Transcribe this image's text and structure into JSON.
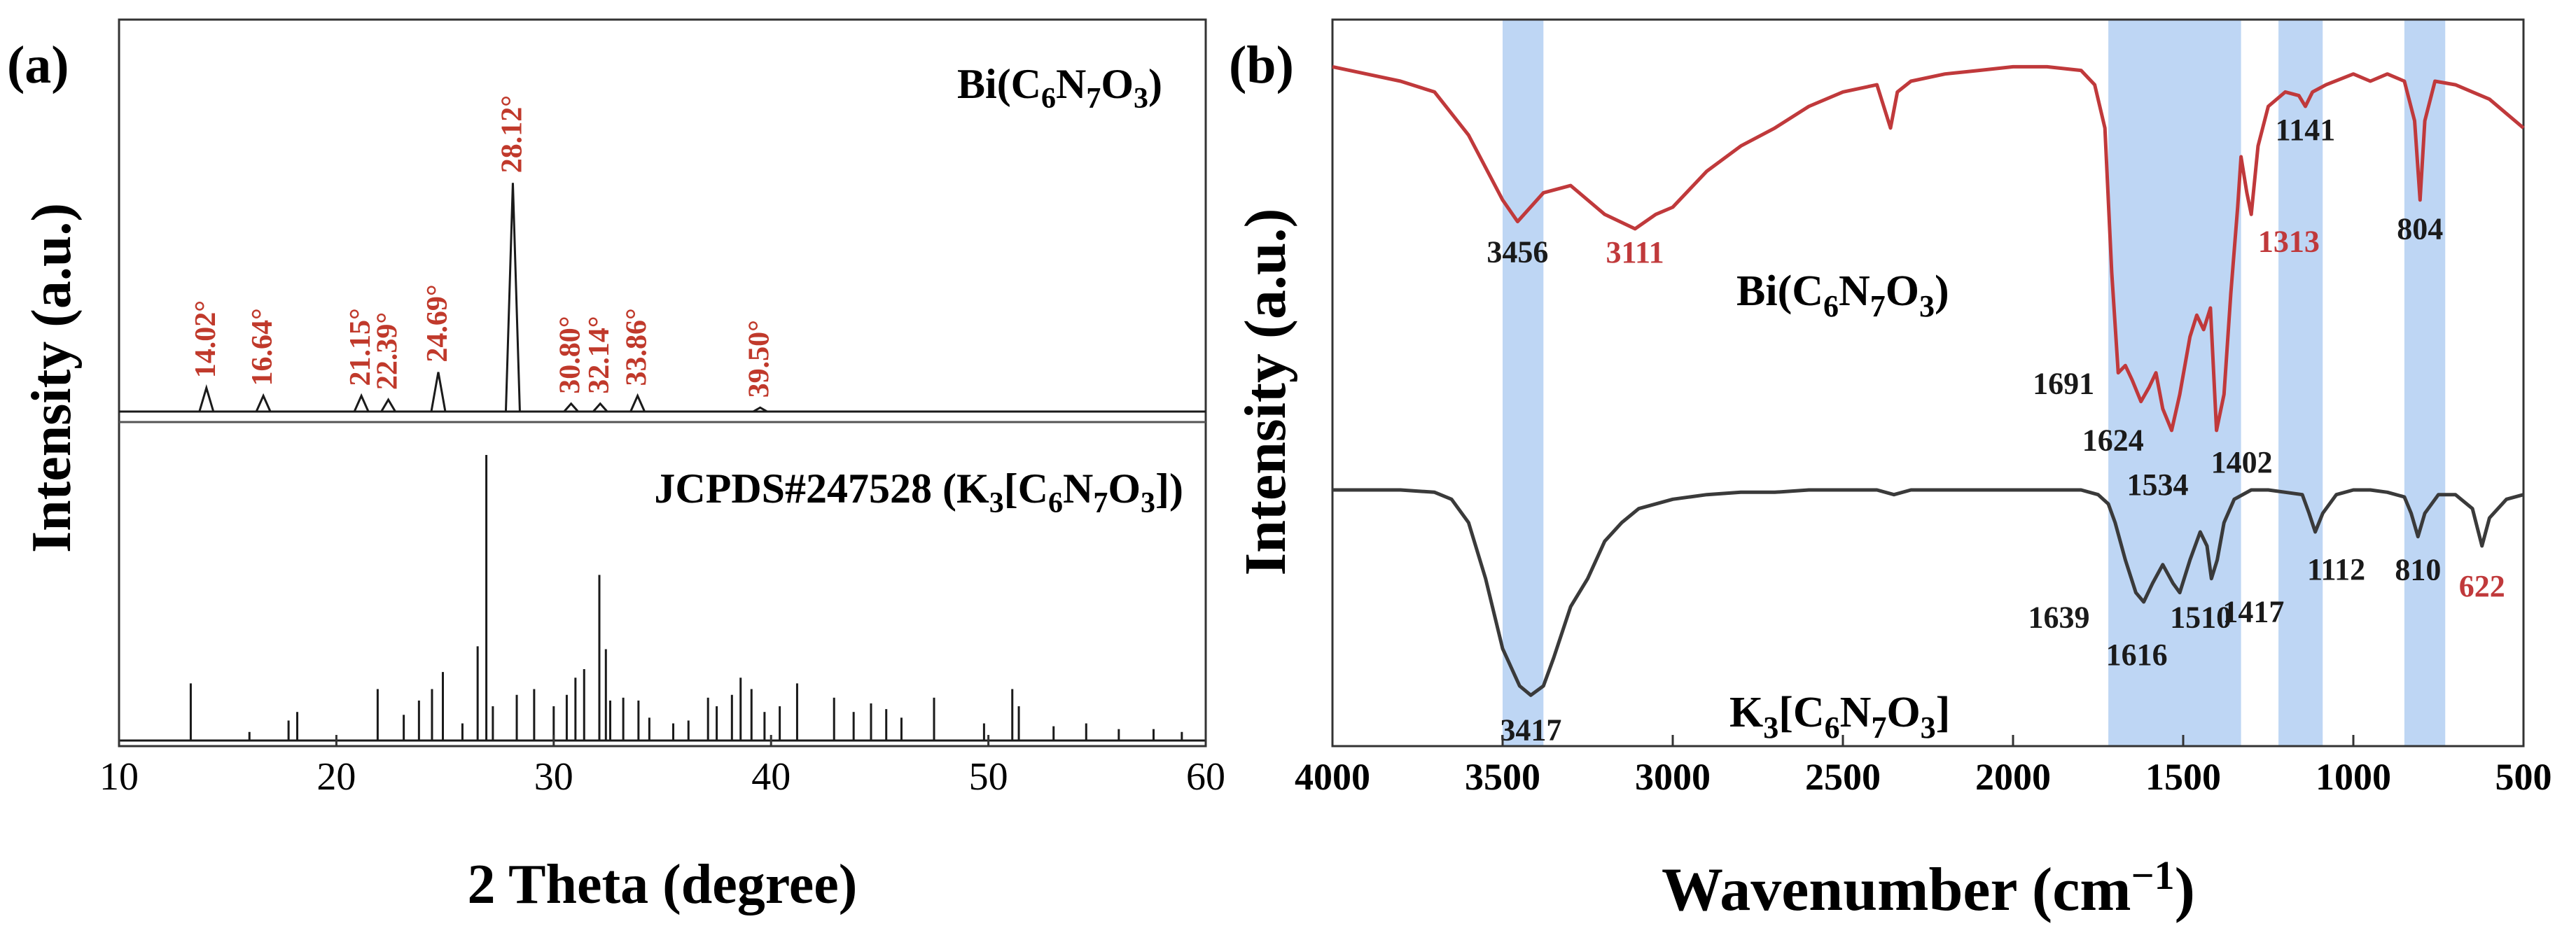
{
  "figure": {
    "panels": [
      "(a)",
      "(b)"
    ]
  },
  "chart_data": [
    {
      "type": "line",
      "panel_label": "(a)",
      "xlabel": "2 Theta (degree)",
      "ylabel": "Intensity (a.u.)",
      "xlim": [
        10,
        60
      ],
      "xticks": [
        10,
        20,
        30,
        40,
        50,
        60
      ],
      "grid": false,
      "series": [
        {
          "name": "Bi(C6N7O3)",
          "color": "#1a1a1a",
          "label_color": "#1a1a1a",
          "x": [
            14.02,
            16.64,
            21.15,
            22.39,
            24.69,
            28.12,
            30.8,
            32.14,
            33.86,
            39.5
          ],
          "y": [
            6,
            4,
            4,
            3,
            10,
            58,
            2,
            2,
            4,
            1
          ]
        },
        {
          "name": "JCPDS#247528 (K3[C6N7O3])",
          "color": "#1a1a1a",
          "x": [
            13.3,
            16.0,
            17.8,
            18.2,
            21.9,
            23.1,
            23.8,
            24.4,
            24.9,
            25.8,
            26.5,
            26.9,
            27.2,
            28.3,
            29.1,
            30.0,
            30.6,
            31.0,
            31.4,
            32.1,
            32.4,
            32.6,
            33.2,
            33.9,
            34.4,
            35.5,
            36.2,
            37.1,
            37.5,
            38.2,
            38.6,
            39.1,
            39.7,
            40.4,
            41.2,
            42.9,
            43.8,
            44.6,
            45.3,
            46.0,
            47.5,
            49.8,
            51.1,
            51.4,
            53.0,
            54.5,
            56.0,
            57.6,
            58.9
          ],
          "y": [
            20,
            3,
            7,
            10,
            18,
            9,
            14,
            18,
            24,
            6,
            33,
            100,
            12,
            16,
            18,
            12,
            16,
            22,
            25,
            58,
            32,
            14,
            15,
            14,
            8,
            6,
            7,
            15,
            12,
            16,
            22,
            18,
            10,
            12,
            20,
            15,
            10,
            13,
            11,
            8,
            15,
            6,
            18,
            12,
            5,
            6,
            4,
            4,
            3
          ]
        }
      ],
      "peak_labels": [
        "14.02°",
        "16.64°",
        "21.15°",
        "22.39°",
        "24.69°",
        "28.12°",
        "30.80°",
        "32.14°",
        "33.86°",
        "39.50°"
      ],
      "peak_label_color": "#c0392b",
      "series_labels": {
        "top": {
          "pre": "Bi(C",
          "s1": "6",
          "m1": "N",
          "s2": "7",
          "m2": "O",
          "s3": "3",
          "post": ")"
        },
        "bottom": {
          "pre": "JCPDS#247528 (K",
          "s0": "3",
          "m0": "[C",
          "s1": "6",
          "m1": "N",
          "s2": "7",
          "m2": "O",
          "s3": "3",
          "post": "])"
        }
      }
    },
    {
      "type": "line",
      "panel_label": "(b)",
      "xlabel_pre": "Wavenumber (cm",
      "xlabel_sup": "−1",
      "xlabel_post": ")",
      "ylabel": "Intensity (a.u.)",
      "xlim": [
        4000,
        500
      ],
      "x_reversed": true,
      "xticks": [
        4000,
        3500,
        3000,
        2500,
        2000,
        1500,
        1000,
        500
      ],
      "grid": false,
      "highlight_bands": [
        [
          3500,
          3380
        ],
        [
          1720,
          1330
        ],
        [
          1220,
          1090
        ],
        [
          850,
          730
        ]
      ],
      "highlight_color": "#a8c8f0",
      "series": [
        {
          "name": "Bi(C6N7O3)",
          "color": "#c0393b",
          "x": [
            4000,
            3900,
            3800,
            3700,
            3600,
            3500,
            3456,
            3380,
            3300,
            3200,
            3111,
            3050,
            3000,
            2900,
            2800,
            2700,
            2600,
            2500,
            2400,
            2360,
            2340,
            2300,
            2200,
            2100,
            2000,
            1900,
            1800,
            1760,
            1730,
            1710,
            1691,
            1670,
            1650,
            1624,
            1600,
            1580,
            1560,
            1534,
            1510,
            1480,
            1460,
            1440,
            1420,
            1402,
            1380,
            1360,
            1340,
            1330,
            1313,
            1300,
            1280,
            1250,
            1200,
            1160,
            1141,
            1120,
            1080,
            1000,
            950,
            900,
            850,
            820,
            804,
            790,
            760,
            700,
            650,
            600,
            550,
            500
          ],
          "y": [
            97,
            95,
            93,
            90,
            78,
            60,
            54,
            62,
            64,
            56,
            52,
            56,
            58,
            68,
            75,
            80,
            86,
            90,
            92,
            80,
            90,
            93,
            95,
            96,
            97,
            97,
            96,
            92,
            80,
            40,
            12,
            14,
            10,
            4,
            8,
            12,
            2,
            -4,
            6,
            22,
            28,
            24,
            30,
            -4,
            6,
            34,
            58,
            72,
            62,
            56,
            75,
            86,
            90,
            89,
            86,
            90,
            92,
            95,
            93,
            95,
            93,
            82,
            60,
            82,
            93,
            92,
            90,
            88,
            84,
            80
          ]
        },
        {
          "name": "K3[C6N7O3]",
          "color": "#3a3a3a",
          "x": [
            4000,
            3900,
            3800,
            3700,
            3650,
            3600,
            3550,
            3500,
            3450,
            3417,
            3380,
            3350,
            3300,
            3250,
            3200,
            3150,
            3100,
            3000,
            2900,
            2800,
            2700,
            2600,
            2500,
            2400,
            2350,
            2300,
            2200,
            2100,
            2000,
            1900,
            1800,
            1750,
            1720,
            1700,
            1670,
            1639,
            1616,
            1590,
            1560,
            1530,
            1510,
            1480,
            1450,
            1430,
            1417,
            1400,
            1380,
            1350,
            1300,
            1250,
            1200,
            1150,
            1130,
            1112,
            1090,
            1050,
            1000,
            950,
            900,
            850,
            830,
            810,
            790,
            750,
            700,
            650,
            622,
            600,
            550,
            500
          ],
          "y": [
            100,
            100,
            100,
            99,
            96,
            86,
            62,
            32,
            16,
            12,
            16,
            28,
            50,
            62,
            78,
            86,
            92,
            96,
            98,
            99,
            99,
            100,
            100,
            100,
            98,
            100,
            100,
            100,
            100,
            100,
            100,
            98,
            94,
            86,
            70,
            56,
            52,
            60,
            68,
            60,
            56,
            70,
            82,
            76,
            62,
            70,
            86,
            96,
            100,
            100,
            99,
            98,
            90,
            82,
            90,
            98,
            100,
            100,
            99,
            97,
            90,
            80,
            90,
            98,
            98,
            92,
            76,
            88,
            96,
            98
          ]
        }
      ],
      "peak_annotations": [
        {
          "text": "3456",
          "x": 3456,
          "series": 0,
          "color": "#1a1a1a"
        },
        {
          "text": "3111",
          "x": 3111,
          "series": 0,
          "color": "#c0393b"
        },
        {
          "text": "1691",
          "x": 1691,
          "series": 0,
          "color": "#1a1a1a"
        },
        {
          "text": "1624",
          "x": 1624,
          "series": 0,
          "color": "#1a1a1a"
        },
        {
          "text": "1534",
          "x": 1534,
          "series": 0,
          "color": "#1a1a1a"
        },
        {
          "text": "1402",
          "x": 1402,
          "series": 0,
          "color": "#1a1a1a"
        },
        {
          "text": "1313",
          "x": 1313,
          "series": 0,
          "color": "#c0393b"
        },
        {
          "text": "1141",
          "x": 1141,
          "series": 0,
          "color": "#1a1a1a"
        },
        {
          "text": "804",
          "x": 804,
          "series": 0,
          "color": "#1a1a1a"
        },
        {
          "text": "3417",
          "x": 3417,
          "series": 1,
          "color": "#1a1a1a"
        },
        {
          "text": "1639",
          "x": 1639,
          "series": 1,
          "color": "#1a1a1a"
        },
        {
          "text": "1616",
          "x": 1616,
          "series": 1,
          "color": "#1a1a1a"
        },
        {
          "text": "1510",
          "x": 1510,
          "series": 1,
          "color": "#1a1a1a"
        },
        {
          "text": "1417",
          "x": 1417,
          "series": 1,
          "color": "#1a1a1a"
        },
        {
          "text": "1112",
          "x": 1112,
          "series": 1,
          "color": "#1a1a1a"
        },
        {
          "text": "810",
          "x": 810,
          "series": 1,
          "color": "#1a1a1a"
        },
        {
          "text": "622",
          "x": 622,
          "series": 1,
          "color": "#c0393b"
        }
      ],
      "series_labels": {
        "top": {
          "pre": "Bi(C",
          "s1": "6",
          "m1": "N",
          "s2": "7",
          "m2": "O",
          "s3": "3",
          "post": ")"
        },
        "bottom": {
          "pre": "K",
          "s0": "3",
          "m0": "[C",
          "s1": "6",
          "m1": "N",
          "s2": "7",
          "m2": "O",
          "s3": "3",
          "post": "]"
        }
      }
    }
  ]
}
